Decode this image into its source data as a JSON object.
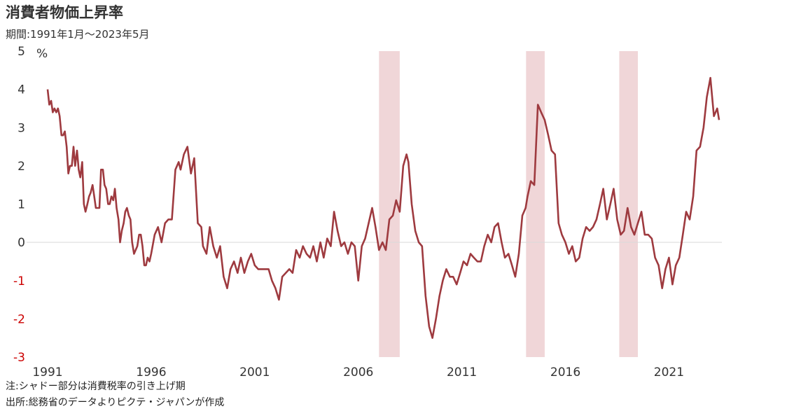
{
  "header": {
    "title": "消費者物価上昇率",
    "subtitle": "期間:1991年1月～2023年5月"
  },
  "notes": {
    "note": "注:シャドー部分は消費税率の引き上げ期",
    "source": "出所:総務省のデータよりピクテ・ジャパンが作成"
  },
  "colors": {
    "line": "#9e3a3f",
    "shade": "#f0d6d8",
    "negative_tick": "#cc0000",
    "zero_line": "#d9d9d9"
  },
  "chart_data": {
    "type": "line",
    "title": "消費者物価上昇率",
    "subtitle": "期間:1991年1月～2023年5月",
    "yunit": "%",
    "ylim": [
      -3,
      5
    ],
    "xlim": [
      1991.0,
      2023.42
    ],
    "yticks": [
      5,
      4,
      3,
      2,
      1,
      0,
      -1,
      -2,
      -3
    ],
    "xticks": [
      1991,
      1996,
      2001,
      2006,
      2011,
      2016,
      2021
    ],
    "grid": false,
    "legend": "none",
    "shaded_periods": [
      [
        2007.0,
        2008.0
      ],
      [
        2014.1,
        2015.0
      ],
      [
        2018.6,
        2019.5
      ]
    ],
    "series": [
      {
        "x": [
          1991.0,
          1991.08,
          1991.17,
          1991.25,
          1991.33,
          1991.42,
          1991.5,
          1991.58,
          1991.67,
          1991.75,
          1991.83,
          1991.92,
          1992.0,
          1992.08,
          1992.17,
          1992.25,
          1992.33,
          1992.42,
          1992.5,
          1992.58,
          1992.67,
          1992.75,
          1992.83,
          1992.92,
          1993.0,
          1993.08,
          1993.17,
          1993.25,
          1993.33,
          1993.42,
          1993.5,
          1993.58,
          1993.67,
          1993.75,
          1993.83,
          1993.92,
          1994.0,
          1994.08,
          1994.17,
          1994.25,
          1994.33,
          1994.42,
          1994.5,
          1994.58,
          1994.67,
          1994.75,
          1994.83,
          1994.92,
          1995.0,
          1995.08,
          1995.17,
          1995.25,
          1995.33,
          1995.42,
          1995.5,
          1995.58,
          1995.67,
          1995.75,
          1995.83,
          1995.92,
          1996.0,
          1996.17,
          1996.33,
          1996.5,
          1996.67,
          1996.83,
          1997.0,
          1997.17,
          1997.33,
          1997.42,
          1997.58,
          1997.75,
          1997.92,
          1998.08,
          1998.25,
          1998.42,
          1998.5,
          1998.67,
          1998.83,
          1999.0,
          1999.17,
          1999.33,
          1999.5,
          1999.67,
          1999.83,
          2000.0,
          2000.17,
          2000.33,
          2000.5,
          2000.67,
          2000.83,
          2001.0,
          2001.17,
          2001.33,
          2001.5,
          2001.67,
          2001.83,
          2002.0,
          2002.17,
          2002.33,
          2002.5,
          2002.67,
          2002.83,
          2003.0,
          2003.17,
          2003.33,
          2003.5,
          2003.67,
          2003.83,
          2004.0,
          2004.17,
          2004.33,
          2004.5,
          2004.67,
          2004.83,
          2005.0,
          2005.17,
          2005.33,
          2005.5,
          2005.67,
          2005.83,
          2006.0,
          2006.17,
          2006.33,
          2006.5,
          2006.67,
          2006.83,
          2007.0,
          2007.17,
          2007.33,
          2007.5,
          2007.67,
          2007.83,
          2008.0,
          2008.17,
          2008.33,
          2008.42,
          2008.58,
          2008.75,
          2008.92,
          2009.08,
          2009.25,
          2009.42,
          2009.58,
          2009.75,
          2009.92,
          2010.08,
          2010.25,
          2010.42,
          2010.58,
          2010.75,
          2010.92,
          2011.08,
          2011.25,
          2011.42,
          2011.58,
          2011.75,
          2011.92,
          2012.08,
          2012.25,
          2012.42,
          2012.58,
          2012.75,
          2012.92,
          2013.08,
          2013.25,
          2013.42,
          2013.58,
          2013.75,
          2013.92,
          2014.08,
          2014.17,
          2014.33,
          2014.5,
          2014.67,
          2014.83,
          2015.0,
          2015.17,
          2015.33,
          2015.5,
          2015.67,
          2015.83,
          2016.0,
          2016.17,
          2016.33,
          2016.5,
          2016.67,
          2016.83,
          2017.0,
          2017.17,
          2017.33,
          2017.5,
          2017.67,
          2017.83,
          2018.0,
          2018.17,
          2018.33,
          2018.5,
          2018.67,
          2018.83,
          2019.0,
          2019.17,
          2019.33,
          2019.5,
          2019.67,
          2019.83,
          2020.0,
          2020.17,
          2020.33,
          2020.5,
          2020.67,
          2020.83,
          2021.0,
          2021.17,
          2021.33,
          2021.5,
          2021.67,
          2021.83,
          2022.0,
          2022.17,
          2022.33,
          2022.5,
          2022.67,
          2022.83,
          2023.0,
          2023.17,
          2023.33,
          2023.42
        ],
        "values": [
          4.0,
          3.6,
          3.7,
          3.4,
          3.5,
          3.4,
          3.5,
          3.3,
          2.8,
          2.8,
          2.9,
          2.5,
          1.8,
          2.0,
          2.0,
          2.5,
          2.0,
          2.4,
          1.9,
          1.7,
          2.1,
          1.0,
          0.8,
          1.0,
          1.2,
          1.3,
          1.5,
          1.2,
          0.9,
          0.9,
          0.9,
          1.9,
          1.9,
          1.5,
          1.4,
          1.0,
          1.0,
          1.2,
          1.1,
          1.4,
          0.9,
          0.6,
          0.0,
          0.3,
          0.5,
          0.8,
          0.9,
          0.7,
          0.6,
          0.0,
          -0.3,
          -0.2,
          -0.1,
          0.2,
          0.2,
          -0.1,
          -0.6,
          -0.6,
          -0.4,
          -0.5,
          -0.3,
          0.2,
          0.4,
          0.0,
          0.5,
          0.6,
          0.6,
          1.9,
          2.1,
          1.9,
          2.3,
          2.5,
          1.8,
          2.2,
          0.5,
          0.4,
          -0.1,
          -0.3,
          0.4,
          -0.1,
          -0.4,
          -0.1,
          -0.9,
          -1.2,
          -0.7,
          -0.5,
          -0.8,
          -0.4,
          -0.8,
          -0.5,
          -0.3,
          -0.6,
          -0.7,
          -0.7,
          -0.7,
          -0.7,
          -1.0,
          -1.2,
          -1.5,
          -0.9,
          -0.8,
          -0.7,
          -0.8,
          -0.2,
          -0.4,
          -0.1,
          -0.3,
          -0.4,
          -0.1,
          -0.5,
          0.0,
          -0.4,
          0.1,
          -0.1,
          0.8,
          0.3,
          -0.1,
          0.0,
          -0.3,
          0.0,
          -0.1,
          -1.0,
          -0.1,
          0.1,
          0.5,
          0.9,
          0.4,
          -0.2,
          0.0,
          -0.2,
          0.6,
          0.7,
          1.1,
          0.8,
          2.0,
          2.3,
          2.1,
          1.0,
          0.3,
          0.0,
          -0.1,
          -1.4,
          -2.2,
          -2.5,
          -2.0,
          -1.4,
          -1.0,
          -0.7,
          -0.9,
          -0.9,
          -1.1,
          -0.8,
          -0.5,
          -0.6,
          -0.3,
          -0.4,
          -0.5,
          -0.5,
          -0.1,
          0.2,
          0.0,
          0.4,
          0.5,
          0.0,
          -0.4,
          -0.3,
          -0.6,
          -0.9,
          -0.3,
          0.7,
          0.9,
          1.2,
          1.6,
          1.5,
          3.6,
          3.4,
          3.2,
          2.8,
          2.4,
          2.3,
          0.5,
          0.2,
          0.0,
          -0.3,
          -0.1,
          -0.5,
          -0.4,
          0.1,
          0.4,
          0.3,
          0.4,
          0.6,
          1.0,
          1.4,
          0.6,
          1.0,
          1.4,
          0.6,
          0.2,
          0.3,
          0.9,
          0.4,
          0.2,
          0.5,
          0.8,
          0.2,
          0.2,
          0.1,
          -0.4,
          -0.6,
          -1.2,
          -0.7,
          -0.4,
          -1.1,
          -0.6,
          -0.4,
          0.2,
          0.8,
          0.6,
          1.2,
          2.4,
          2.5,
          3.0,
          3.8,
          4.3,
          3.3,
          3.5,
          3.2
        ]
      }
    ]
  }
}
